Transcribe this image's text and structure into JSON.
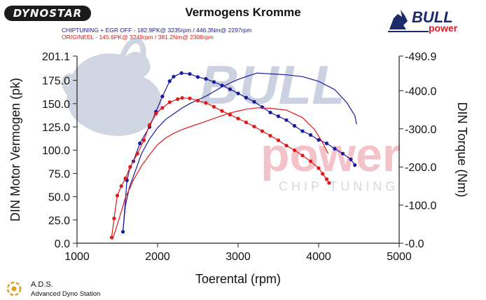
{
  "brand_logo_text": "DYNOSTAR",
  "bull_logo_text": "BULL",
  "bull_logo_sub": "power",
  "watermark": {
    "big1": "BULL",
    "big2": "power",
    "sub": "CHIP TUNING"
  },
  "footer": {
    "title": "A.D.S.",
    "subtitle": "Advanced Dyno Station"
  },
  "colors": {
    "series_tuned": "#1a1a9c",
    "series_original": "#e01818",
    "watermark": "#f0b0b8",
    "bull": "#aab4cc"
  },
  "chart_data": {
    "type": "line",
    "title": "Vermogens Kromme",
    "legend": [
      "CHIPTUNING + EGR OFF  - 182.9PK@ 3235rpm / 446.3Nm@ 2297rpm",
      "ORIGINEEL  - 145.6PK@ 3249rpm / 381.2Nm@ 2306rpm"
    ],
    "xlabel": "Toerental (rpm)",
    "ylabel_left": "DIN Motor Vermogen (pk)",
    "ylabel_right": "DIN Torque (Nm)",
    "xlim": [
      1000,
      5000
    ],
    "xticks": [
      "1000",
      "2000",
      "3000",
      "4000",
      "5000"
    ],
    "ylim_left": [
      0.0,
      201.1
    ],
    "yticks_left": [
      "0.0",
      "25.0",
      "50.0",
      "75.0",
      "100.0",
      "125.0",
      "150.0",
      "175.0",
      "201.1"
    ],
    "ylim_right": [
      0.0,
      490.9
    ],
    "yticks_right": [
      "0.0",
      "100.0",
      "200.0",
      "300.0",
      "400.0",
      "490.9"
    ],
    "grid": false,
    "series": [
      {
        "name": "CHIPTUNING + EGR OFF",
        "kind": "power",
        "axis": "left",
        "marked": false,
        "points": [
          [
            1570,
            13
          ],
          [
            1600,
            40
          ],
          [
            1650,
            60
          ],
          [
            1700,
            72
          ],
          [
            1750,
            84
          ],
          [
            1800,
            96
          ],
          [
            1900,
            112
          ],
          [
            2000,
            124
          ],
          [
            2100,
            133
          ],
          [
            2200,
            139
          ],
          [
            2300,
            145
          ],
          [
            2400,
            150
          ],
          [
            2500,
            154
          ],
          [
            2600,
            158
          ],
          [
            2700,
            163
          ],
          [
            2800,
            168
          ],
          [
            2900,
            172
          ],
          [
            3000,
            176
          ],
          [
            3100,
            179
          ],
          [
            3235,
            182.9
          ],
          [
            3400,
            182
          ],
          [
            3600,
            181
          ],
          [
            3800,
            179
          ],
          [
            4000,
            174
          ],
          [
            4200,
            165
          ],
          [
            4350,
            151
          ],
          [
            4450,
            137
          ],
          [
            4470,
            128
          ]
        ]
      },
      {
        "name": "CHIPTUNING + EGR OFF",
        "kind": "torque",
        "axis": "right",
        "marked": true,
        "points": [
          [
            1570,
            30
          ],
          [
            1620,
            165
          ],
          [
            1660,
            200
          ],
          [
            1700,
            215
          ],
          [
            1780,
            262
          ],
          [
            1900,
            305
          ],
          [
            1980,
            345
          ],
          [
            2060,
            385
          ],
          [
            2150,
            425
          ],
          [
            2200,
            437
          ],
          [
            2297,
            446.3
          ],
          [
            2400,
            444
          ],
          [
            2500,
            436
          ],
          [
            2600,
            431
          ],
          [
            2700,
            423
          ],
          [
            2800,
            414
          ],
          [
            2900,
            404
          ],
          [
            3000,
            393
          ],
          [
            3100,
            382
          ],
          [
            3200,
            371
          ],
          [
            3300,
            357
          ],
          [
            3400,
            343
          ],
          [
            3500,
            333
          ],
          [
            3600,
            323
          ],
          [
            3700,
            308
          ],
          [
            3800,
            294
          ],
          [
            3900,
            284
          ],
          [
            4000,
            271
          ],
          [
            4100,
            262
          ],
          [
            4200,
            248
          ],
          [
            4300,
            235
          ],
          [
            4400,
            220
          ],
          [
            4450,
            205
          ]
        ]
      },
      {
        "name": "ORIGINEEL",
        "kind": "power",
        "axis": "left",
        "marked": false,
        "points": [
          [
            1440,
            4
          ],
          [
            1500,
            20
          ],
          [
            1560,
            37
          ],
          [
            1600,
            49
          ],
          [
            1650,
            58
          ],
          [
            1700,
            68
          ],
          [
            1800,
            83
          ],
          [
            1900,
            95
          ],
          [
            2000,
            106
          ],
          [
            2100,
            113
          ],
          [
            2200,
            118
          ],
          [
            2300,
            122
          ],
          [
            2400,
            125
          ],
          [
            2500,
            128
          ],
          [
            2600,
            131
          ],
          [
            2700,
            134
          ],
          [
            2800,
            137
          ],
          [
            2900,
            140
          ],
          [
            3000,
            142
          ],
          [
            3100,
            144
          ],
          [
            3249,
            145.6
          ],
          [
            3400,
            145
          ],
          [
            3600,
            143
          ],
          [
            3800,
            135
          ],
          [
            3950,
            122
          ],
          [
            4050,
            108
          ],
          [
            4120,
            96
          ]
        ]
      },
      {
        "name": "ORIGINEEL",
        "kind": "torque",
        "axis": "right",
        "marked": true,
        "points": [
          [
            1430,
            15
          ],
          [
            1460,
            65
          ],
          [
            1500,
            125
          ],
          [
            1550,
            150
          ],
          [
            1600,
            170
          ],
          [
            1660,
            200
          ],
          [
            1750,
            235
          ],
          [
            1830,
            270
          ],
          [
            1900,
            310
          ],
          [
            1980,
            340
          ],
          [
            2060,
            355
          ],
          [
            2150,
            370
          ],
          [
            2250,
            378
          ],
          [
            2306,
            381.2
          ],
          [
            2400,
            380
          ],
          [
            2500,
            374
          ],
          [
            2600,
            368
          ],
          [
            2700,
            358
          ],
          [
            2800,
            347
          ],
          [
            2900,
            337
          ],
          [
            3000,
            327
          ],
          [
            3100,
            317
          ],
          [
            3200,
            306
          ],
          [
            3300,
            294
          ],
          [
            3400,
            282
          ],
          [
            3500,
            270
          ],
          [
            3600,
            256
          ],
          [
            3700,
            244
          ],
          [
            3800,
            230
          ],
          [
            3900,
            215
          ],
          [
            4000,
            197
          ],
          [
            4050,
            182
          ],
          [
            4100,
            168
          ],
          [
            4130,
            158
          ]
        ]
      }
    ]
  }
}
